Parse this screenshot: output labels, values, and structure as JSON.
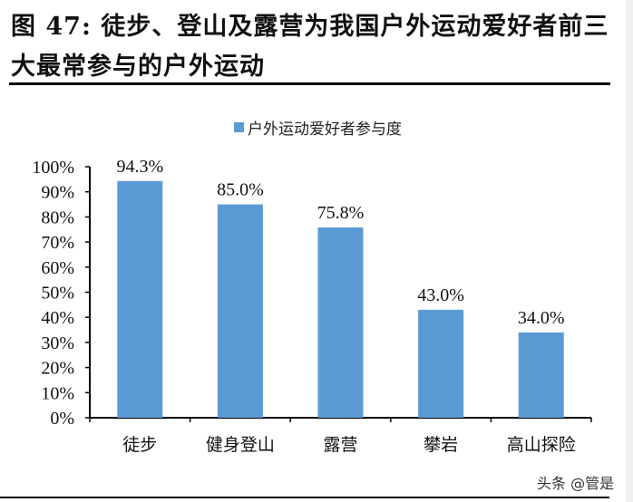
{
  "title": "图 47: 徒步、登山及露营为我国户外运动爱好者前三大最常参与的户外运动",
  "watermark": "头条 @管是",
  "chart_data": {
    "type": "bar",
    "title": "图 47: 徒步、登山及露营为我国户外运动爱好者前三大最常参与的户外运动",
    "categories": [
      "徒步",
      "健身登山",
      "露营",
      "攀岩",
      "高山探险"
    ],
    "series": [
      {
        "name": "户外运动爱好者参与度",
        "values": [
          94.3,
          85.0,
          75.8,
          43.0,
          34.0
        ],
        "color": "#5b9bd5"
      }
    ],
    "data_labels": [
      "94.3%",
      "85.0%",
      "75.8%",
      "43.0%",
      "34.0%"
    ],
    "yticks": [
      "0%",
      "10%",
      "20%",
      "30%",
      "40%",
      "50%",
      "60%",
      "70%",
      "80%",
      "90%",
      "100%"
    ],
    "ylim": [
      0,
      100
    ],
    "xlabel": "",
    "ylabel": "",
    "legend": "top-center",
    "grid": false
  }
}
